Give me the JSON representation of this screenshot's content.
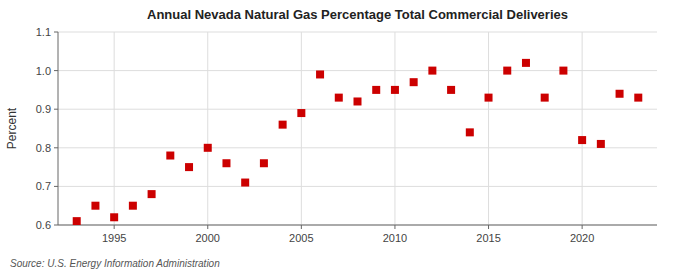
{
  "chart_data": {
    "type": "scatter",
    "title": "Annual Nevada Natural Gas Percentage Total Commercial Deliveries",
    "ylabel": "Percent",
    "source": "Source: U.S. Energy Information Administration",
    "x": [
      1993,
      1994,
      1995,
      1996,
      1997,
      1998,
      1999,
      2000,
      2001,
      2002,
      2003,
      2004,
      2005,
      2006,
      2007,
      2008,
      2009,
      2010,
      2011,
      2012,
      2013,
      2014,
      2015,
      2016,
      2017,
      2018,
      2019,
      2020,
      2021,
      2022,
      2023
    ],
    "values": [
      0.61,
      0.65,
      0.62,
      0.65,
      0.68,
      0.78,
      0.75,
      0.8,
      0.76,
      0.71,
      0.76,
      0.86,
      0.89,
      0.99,
      0.93,
      0.92,
      0.95,
      0.95,
      0.97,
      1.0,
      0.95,
      0.84,
      0.93,
      1.0,
      1.02,
      0.93,
      1.0,
      0.82,
      0.81,
      0.94,
      0.93
    ],
    "color": "#cc0000",
    "marker": "square",
    "xlim": [
      1992,
      2024
    ],
    "ylim": [
      0.6,
      1.1
    ],
    "xticks": [
      1995,
      2000,
      2005,
      2010,
      2015,
      2020
    ],
    "yticks": [
      0.6,
      0.7,
      0.8,
      0.9,
      {
        "value": 1.0,
        "label": "1.0"
      },
      1.1
    ],
    "grid": true
  }
}
